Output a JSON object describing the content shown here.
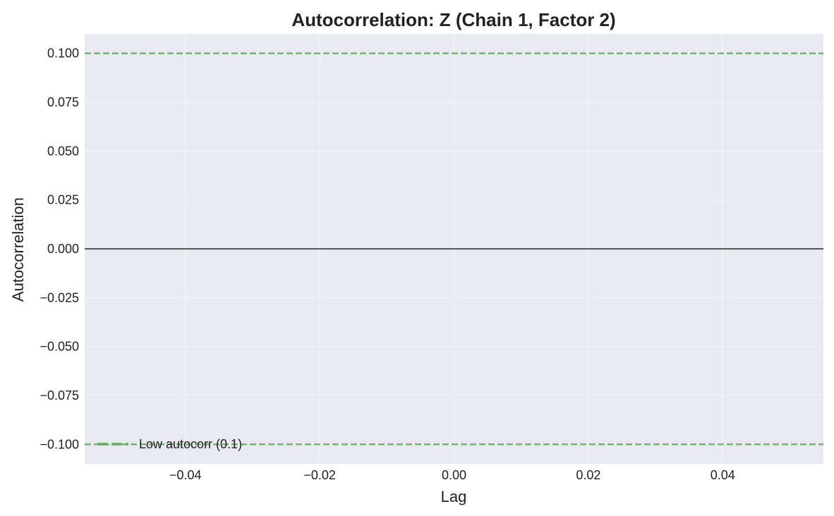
{
  "chart_data": {
    "type": "line",
    "title": "Autocorrelation: Z (Chain 1, Factor 2)",
    "xlabel": "Lag",
    "ylabel": "Autocorrelation",
    "xlim": [
      -0.055,
      0.055
    ],
    "ylim": [
      -0.11,
      0.11
    ],
    "x_ticks": [
      -0.04,
      -0.02,
      0.0,
      0.02,
      0.04
    ],
    "x_tick_labels": [
      "−0.04",
      "−0.02",
      "0.00",
      "0.02",
      "0.04"
    ],
    "y_ticks": [
      0.1,
      0.075,
      0.05,
      0.025,
      0.0,
      -0.025,
      -0.05,
      -0.075,
      -0.1
    ],
    "y_tick_labels": [
      "0.100",
      "0.075",
      "0.050",
      "0.025",
      "0.000",
      "−0.025",
      "−0.050",
      "−0.075",
      "−0.100"
    ],
    "grid": true,
    "series": [],
    "reference_lines": [
      {
        "orientation": "horizontal",
        "y": 0.0,
        "style": "solid",
        "color": "#222222"
      },
      {
        "orientation": "horizontal",
        "y": 0.1,
        "style": "dashed",
        "color": "#6db36d"
      },
      {
        "orientation": "horizontal",
        "y": -0.1,
        "style": "dashed",
        "color": "#6db36d"
      }
    ],
    "legend": {
      "placement": "lower-left",
      "entries": [
        {
          "label": "Low autocorr (0.1)",
          "style": "dashed",
          "color": "#6db36d"
        }
      ]
    },
    "colors": {
      "plot_background": "#e9e9f1",
      "grid": "#f4f4f8",
      "reference": "#6db36d",
      "zero_line": "#222222"
    }
  }
}
